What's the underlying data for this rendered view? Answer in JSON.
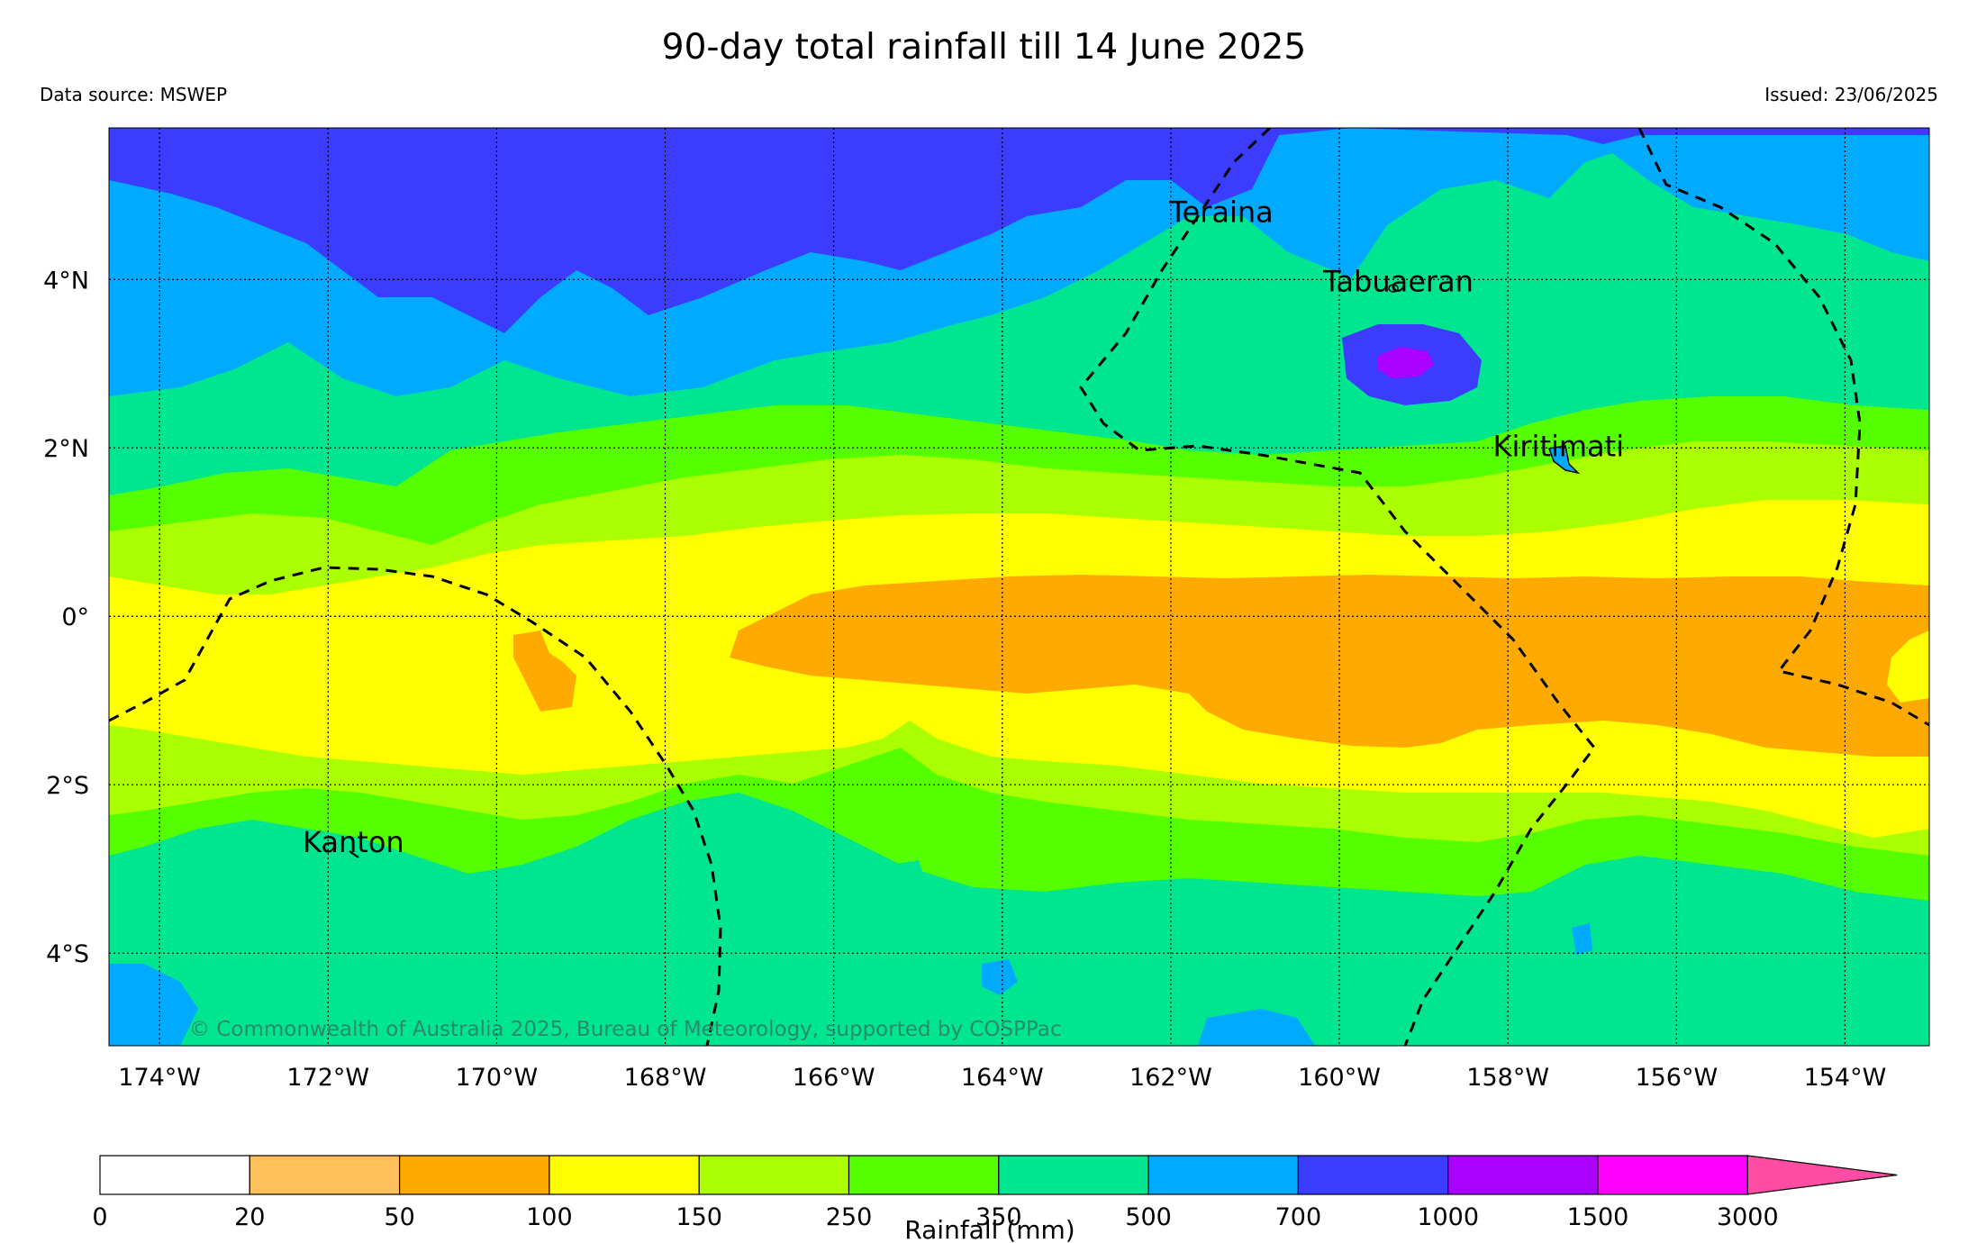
{
  "title": "90-day total rainfall till 14 June 2025",
  "data_source": "Data source: MSWEP",
  "issued": "Issued: 23/06/2025",
  "copyright": "© Commonwealth of Australia 2025, Bureau of Meteorology, supported by COSPPac",
  "map": {
    "lon_ticks": [
      "174°W",
      "172°W",
      "170°W",
      "168°W",
      "166°W",
      "164°W",
      "162°W",
      "160°W",
      "158°W",
      "156°W",
      "154°W"
    ],
    "lat_ticks": [
      "4°N",
      "2°N",
      "0°",
      "2°S",
      "4°S"
    ],
    "lon_range": [
      -174.6,
      -153.0
    ],
    "lat_range": [
      -5.1,
      5.8
    ],
    "gridlines": true,
    "places": [
      {
        "name": "Teraina",
        "lon": -161.4,
        "lat": 4.68
      },
      {
        "name": "Tabuaeran",
        "lon": -159.3,
        "lat": 3.86
      },
      {
        "name": "Kiritimati",
        "lon": -157.4,
        "lat": 1.9
      },
      {
        "name": "Kanton",
        "lon": -171.7,
        "lat": -2.8
      }
    ]
  },
  "colorbar": {
    "title": "Rainfall (mm)",
    "labels": [
      "0",
      "20",
      "50",
      "100",
      "150",
      "250",
      "350",
      "500",
      "700",
      "1000",
      "1500",
      "3000"
    ],
    "colors": [
      "#ffffff",
      "#ffbf5a",
      "#ffaa00",
      "#ffff00",
      "#aaff00",
      "#55ff00",
      "#00e58f",
      "#00aaff",
      "#3c3cff",
      "#aa00ff",
      "#ff00ff",
      "#ff4da6"
    ]
  }
}
